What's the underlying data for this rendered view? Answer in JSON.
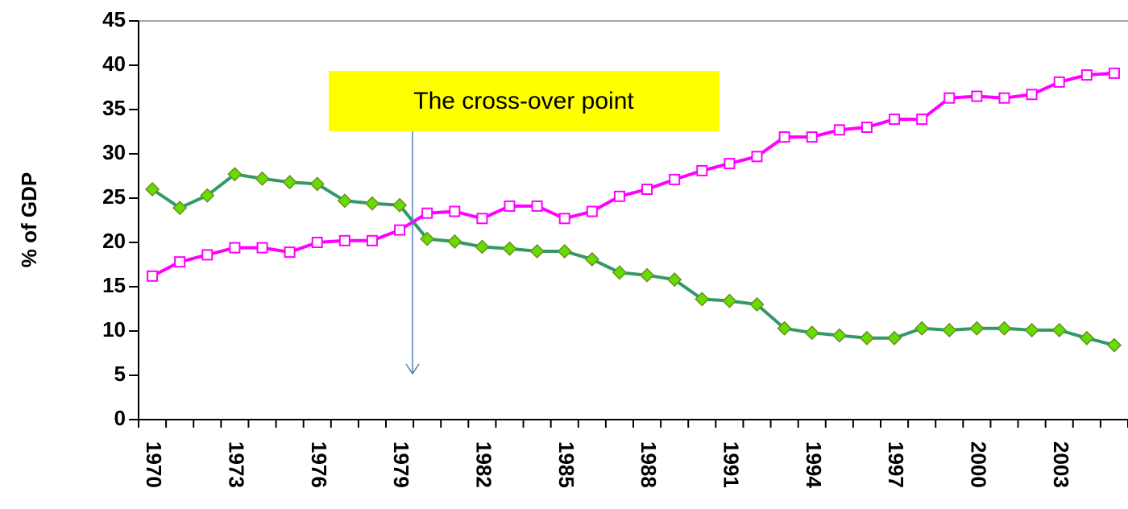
{
  "chart_data": {
    "type": "line",
    "y_label": "% of GDP",
    "annotation": "The cross-over point",
    "categories": [
      1970,
      null,
      null,
      1973,
      null,
      null,
      1976,
      null,
      null,
      1979,
      null,
      null,
      1982,
      null,
      null,
      1985,
      null,
      null,
      1988,
      null,
      null,
      1991,
      null,
      null,
      1994,
      null,
      null,
      1997,
      null,
      null,
      2000,
      null,
      null,
      2003,
      null,
      null
    ],
    "series": [
      {
        "color": "#339966",
        "marker": "diamond",
        "marker_color": "#66dd00",
        "values": [
          26,
          23.9,
          25.3,
          27.7,
          27.2,
          26.8,
          26.6,
          24.7,
          24.4,
          24.2,
          20.4,
          20.1,
          19.5,
          19.3,
          19.0,
          19.0,
          18.1,
          16.6,
          16.3,
          15.8,
          13.6,
          13.4,
          13.0,
          10.3,
          9.8,
          9.5,
          9.2,
          9.2,
          10.3,
          10.1,
          10.3,
          10.3,
          10.1,
          10.1,
          9.2,
          8.4
        ]
      },
      {
        "color": "#ff00ff",
        "marker": "square",
        "marker_color": "#ffffff",
        "values": [
          16.2,
          17.8,
          18.6,
          19.4,
          19.4,
          18.9,
          20.0,
          20.2,
          20.2,
          21.4,
          23.3,
          23.5,
          22.7,
          24.1,
          24.1,
          22.7,
          23.5,
          25.2,
          26.0,
          27.1,
          28.1,
          28.9,
          29.7,
          31.9,
          31.9,
          32.7,
          33.0,
          33.9,
          33.9,
          36.3,
          36.5,
          36.3,
          36.7,
          38.1,
          38.9,
          39.1
        ]
      }
    ],
    "ylim": [
      0,
      45
    ],
    "yticks": [
      0,
      5,
      10,
      15,
      20,
      25,
      30,
      35,
      40,
      45
    ]
  }
}
